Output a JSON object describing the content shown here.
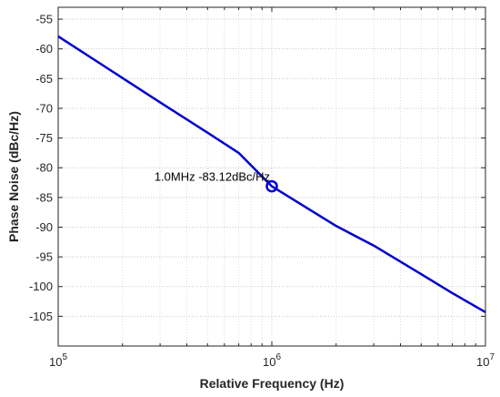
{
  "chart_data": {
    "type": "line",
    "x_scale": "log",
    "y_scale": "linear",
    "xlabel": "Relative Frequency (Hz)",
    "ylabel": "Phase Noise (dBc/Hz)",
    "xlim": [
      100000,
      10000000
    ],
    "ylim": [
      -110,
      -53
    ],
    "x_ticks": [
      100000,
      1000000,
      10000000
    ],
    "x_tick_labels": [
      {
        "base": "10",
        "exp": "5"
      },
      {
        "base": "10",
        "exp": "6"
      },
      {
        "base": "10",
        "exp": "7"
      }
    ],
    "y_ticks": [
      -105,
      -100,
      -95,
      -90,
      -85,
      -80,
      -75,
      -70,
      -65,
      -60,
      -55
    ],
    "y_tick_labels": [
      "-105",
      "-100",
      "-95",
      "-90",
      "-85",
      "-80",
      "-75",
      "-70",
      "-65",
      "-60",
      "-55"
    ],
    "grid": true,
    "series": [
      {
        "color": "#0000CD",
        "x": [
          100000,
          200000,
          300000,
          500000,
          700000,
          1000000,
          2000000,
          3000000,
          5000000,
          7000000,
          10000000
        ],
        "y": [
          -57.9,
          -64.9,
          -69.0,
          -74.1,
          -77.5,
          -83.12,
          -89.8,
          -93.1,
          -97.9,
          -101.1,
          -104.3
        ]
      }
    ],
    "annotations": [
      {
        "x": 1000000,
        "y": -83.12,
        "text": "1.0MHz -83.12dBc/Hz",
        "marker": "circle"
      }
    ]
  }
}
